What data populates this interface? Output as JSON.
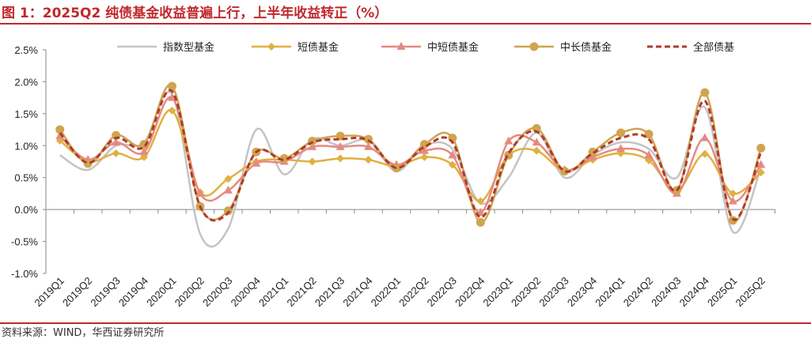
{
  "title": "图 1：2025Q2 纯债基金收益普遍上行，上半年收益转正（%）",
  "source": "资料来源：WIND，华西证券研究所",
  "chart_data": {
    "type": "line",
    "title": "",
    "ylim": [
      -1.0,
      2.5
    ],
    "yticks": [
      "-1.0%",
      "-0.5%",
      "0.0%",
      "0.5%",
      "1.0%",
      "1.5%",
      "2.0%",
      "2.5%"
    ],
    "ytick_values": [
      -1.0,
      -0.5,
      0,
      0.5,
      1.0,
      1.5,
      2.0,
      2.5
    ],
    "legend_position": "top",
    "grid": false,
    "categories": [
      "2019Q1",
      "2019Q2",
      "2019Q3",
      "2019Q4",
      "2020Q1",
      "2020Q2",
      "2020Q3",
      "2020Q4",
      "2021Q1",
      "2021Q2",
      "2021Q3",
      "2021Q4",
      "2022Q1",
      "2022Q2",
      "2022Q3",
      "2022Q4",
      "2023Q1",
      "2023Q2",
      "2023Q3",
      "2023Q4",
      "2024Q1",
      "2024Q2",
      "2024Q3",
      "2024Q4",
      "2025Q1",
      "2025Q2"
    ],
    "series": [
      {
        "name": "指数型基金",
        "color": "#c4c4c4",
        "marker": "none",
        "dash": false,
        "values": [
          0.85,
          0.62,
          1.0,
          1.05,
          1.8,
          -0.38,
          -0.3,
          1.25,
          0.55,
          1.1,
          1.0,
          1.08,
          0.6,
          1.0,
          0.95,
          0.1,
          0.5,
          1.2,
          0.5,
          0.85,
          1.05,
          0.95,
          0.5,
          1.6,
          -0.35,
          0.65
        ]
      },
      {
        "name": "短债基金",
        "color": "#e0b040",
        "marker": "diamond",
        "dash": false,
        "values": [
          1.08,
          0.75,
          0.88,
          0.82,
          1.55,
          0.27,
          0.48,
          0.75,
          0.78,
          0.75,
          0.8,
          0.78,
          0.68,
          0.82,
          0.7,
          0.13,
          0.85,
          0.92,
          0.6,
          0.78,
          0.88,
          0.77,
          0.3,
          0.87,
          0.25,
          0.58
        ]
      },
      {
        "name": "中短债基金",
        "color": "#e58a80",
        "marker": "triangle",
        "dash": false,
        "values": [
          1.15,
          0.78,
          1.05,
          0.9,
          1.75,
          0.25,
          0.3,
          0.72,
          0.75,
          0.98,
          0.98,
          0.98,
          0.7,
          0.92,
          0.85,
          -0.05,
          1.07,
          1.05,
          0.62,
          0.82,
          0.95,
          0.85,
          0.25,
          1.12,
          0.13,
          0.7
        ]
      },
      {
        "name": "中长债基金",
        "color": "#d0a450",
        "marker": "circle",
        "dash": false,
        "values": [
          1.25,
          0.72,
          1.16,
          1.02,
          1.93,
          0.05,
          -0.02,
          0.9,
          0.8,
          1.07,
          1.15,
          1.1,
          0.65,
          1.02,
          1.12,
          -0.2,
          0.85,
          1.27,
          0.6,
          0.9,
          1.2,
          1.18,
          0.3,
          1.83,
          -0.17,
          0.96
        ]
      },
      {
        "name": "全部债基",
        "color": "#b03a2e",
        "marker": "none",
        "dash": true,
        "values": [
          1.2,
          0.73,
          1.12,
          0.98,
          1.85,
          0.05,
          -0.05,
          0.9,
          0.78,
          1.05,
          1.1,
          1.08,
          0.65,
          0.98,
          1.05,
          -0.12,
          0.88,
          1.22,
          0.6,
          0.88,
          1.12,
          1.1,
          0.3,
          1.7,
          -0.15,
          0.9
        ]
      }
    ]
  }
}
